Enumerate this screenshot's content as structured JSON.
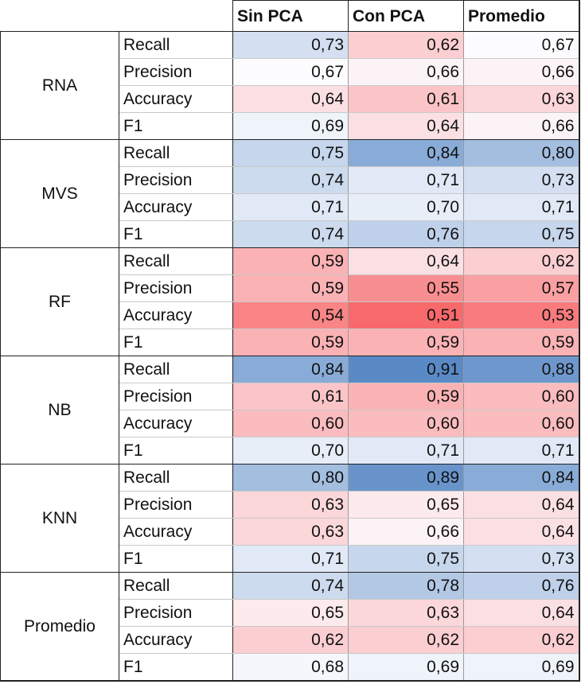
{
  "columns": [
    "Sin PCA",
    "Con PCA",
    "Promedio"
  ],
  "groups": [
    {
      "model": "RNA",
      "rows": [
        {
          "metric": "Recall",
          "values": [
            "0,73",
            "0,62",
            "0,67"
          ]
        },
        {
          "metric": "Precision",
          "values": [
            "0,67",
            "0,66",
            "0,66"
          ]
        },
        {
          "metric": "Accuracy",
          "values": [
            "0,64",
            "0,61",
            "0,63"
          ]
        },
        {
          "metric": "F1",
          "values": [
            "0,69",
            "0,64",
            "0,66"
          ]
        }
      ]
    },
    {
      "model": "MVS",
      "rows": [
        {
          "metric": "Recall",
          "values": [
            "0,75",
            "0,84",
            "0,80"
          ]
        },
        {
          "metric": "Precision",
          "values": [
            "0,74",
            "0,71",
            "0,73"
          ]
        },
        {
          "metric": "Accuracy",
          "values": [
            "0,71",
            "0,70",
            "0,71"
          ]
        },
        {
          "metric": "F1",
          "values": [
            "0,74",
            "0,76",
            "0,75"
          ]
        }
      ]
    },
    {
      "model": "RF",
      "rows": [
        {
          "metric": "Recall",
          "values": [
            "0,59",
            "0,64",
            "0,62"
          ]
        },
        {
          "metric": "Precision",
          "values": [
            "0,59",
            "0,55",
            "0,57"
          ]
        },
        {
          "metric": "Accuracy",
          "values": [
            "0,54",
            "0,51",
            "0,53"
          ]
        },
        {
          "metric": "F1",
          "values": [
            "0,59",
            "0,59",
            "0,59"
          ]
        }
      ]
    },
    {
      "model": "NB",
      "rows": [
        {
          "metric": "Recall",
          "values": [
            "0,84",
            "0,91",
            "0,88"
          ]
        },
        {
          "metric": "Precision",
          "values": [
            "0,61",
            "0,59",
            "0,60"
          ]
        },
        {
          "metric": "Accuracy",
          "values": [
            "0,60",
            "0,60",
            "0,60"
          ]
        },
        {
          "metric": "F1",
          "values": [
            "0,70",
            "0,71",
            "0,71"
          ]
        }
      ]
    },
    {
      "model": "KNN",
      "rows": [
        {
          "metric": "Recall",
          "values": [
            "0,80",
            "0,89",
            "0,84"
          ]
        },
        {
          "metric": "Precision",
          "values": [
            "0,63",
            "0,65",
            "0,64"
          ]
        },
        {
          "metric": "Accuracy",
          "values": [
            "0,63",
            "0,66",
            "0,64"
          ]
        },
        {
          "metric": "F1",
          "values": [
            "0,71",
            "0,75",
            "0,73"
          ]
        }
      ]
    },
    {
      "model": "Promedio",
      "rows": [
        {
          "metric": "Recall",
          "values": [
            "0,74",
            "0,78",
            "0,76"
          ]
        },
        {
          "metric": "Precision",
          "values": [
            "0,65",
            "0,63",
            "0,64"
          ]
        },
        {
          "metric": "Accuracy",
          "values": [
            "0,62",
            "0,62",
            "0,62"
          ]
        },
        {
          "metric": "F1",
          "values": [
            "0,68",
            "0,69",
            "0,69"
          ]
        }
      ]
    }
  ],
  "color_scale": {
    "low": "#f8696b",
    "mid": "#fcfcff",
    "high": "#5a8ac6",
    "min": 0.51,
    "mid_value": 0.67,
    "max": 0.91
  }
}
